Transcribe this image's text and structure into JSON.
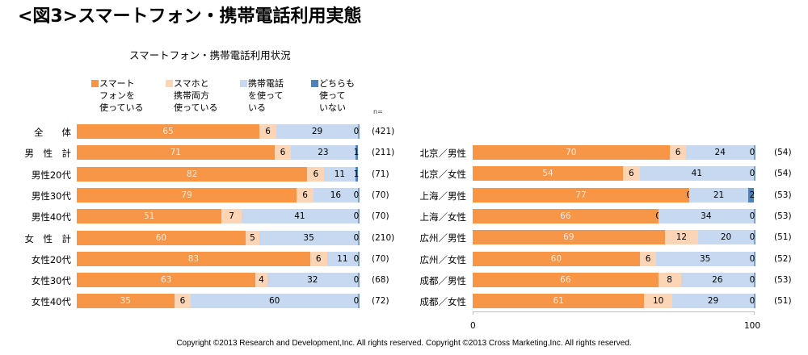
{
  "figure_title": "<図3>スマートフォン・携帯電話利用実態",
  "copyright": "Copyright ©2013 Research and Development,Inc. All rights reserved. Copyright ©2013 Cross Marketing,Inc. All rights reserved.",
  "chart_data": {
    "type": "bar",
    "orientation": "horizontal",
    "stacked": "percent",
    "title": "スマートフォン・携帯電話利用状況",
    "xlabel": "",
    "ylabel": "",
    "xlim": [
      0,
      100
    ],
    "x_ticks": [
      "0",
      "100"
    ],
    "n_header": "n=",
    "legend_position": "top",
    "series": [
      {
        "name": "スマートフォンを使っている",
        "legend_lines": "スマート\nフォンを\n使っている",
        "color": "#F79646"
      },
      {
        "name": "スマホと携帯両方使っている",
        "legend_lines": "スマホと\n携帯両方\n使っている",
        "color": "#FBD5B5"
      },
      {
        "name": "携帯電話を使っている",
        "legend_lines": "携帯電話\nを使って\nいる",
        "color": "#C6D9F1"
      },
      {
        "name": "どちらも使っていない",
        "legend_lines": "どちらも\n使って\nいない",
        "color": "#4F81BD"
      }
    ],
    "panels": [
      {
        "name": "left",
        "categories": [
          "全　　体",
          "男　性　計",
          "男性20代",
          "男性30代",
          "男性40代",
          "女　性　計",
          "女性20代",
          "女性30代",
          "女性40代"
        ],
        "values": [
          [
            65,
            6,
            29,
            0
          ],
          [
            71,
            6,
            23,
            1
          ],
          [
            82,
            6,
            11,
            1
          ],
          [
            79,
            6,
            16,
            0
          ],
          [
            51,
            7,
            41,
            0
          ],
          [
            60,
            5,
            35,
            0
          ],
          [
            83,
            6,
            11,
            0
          ],
          [
            63,
            4,
            32,
            0
          ],
          [
            35,
            6,
            60,
            0
          ]
        ],
        "n": [
          "(421)",
          "(211)",
          "(71)",
          "(70)",
          "(70)",
          "(210)",
          "(70)",
          "(68)",
          "(72)"
        ]
      },
      {
        "name": "right",
        "categories": [
          "北京／男性",
          "北京／女性",
          "上海／男性",
          "上海／女性",
          "広州／男性",
          "広州／女性",
          "成都／男性",
          "成都／女性"
        ],
        "values": [
          [
            70,
            6,
            24,
            0
          ],
          [
            54,
            6,
            41,
            0
          ],
          [
            77,
            0,
            21,
            2
          ],
          [
            66,
            0,
            34,
            0
          ],
          [
            69,
            12,
            20,
            0
          ],
          [
            60,
            6,
            35,
            0
          ],
          [
            66,
            8,
            26,
            0
          ],
          [
            61,
            10,
            29,
            0
          ]
        ],
        "n": [
          "(54)",
          "(54)",
          "(53)",
          "(53)",
          "(51)",
          "(52)",
          "(53)",
          "(51)"
        ]
      }
    ]
  }
}
